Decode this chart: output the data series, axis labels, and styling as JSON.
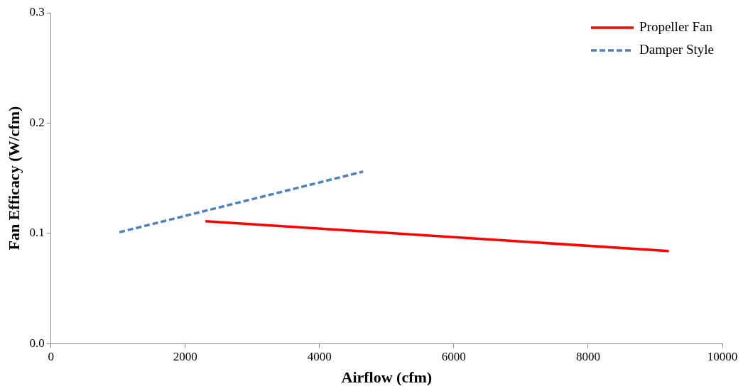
{
  "chart_data": {
    "type": "line",
    "xlabel": "Airflow (cfm)",
    "ylabel": "Fan Efficacy (W/cfm)",
    "xlim": [
      0,
      10000
    ],
    "xticks": [
      0,
      2000,
      4000,
      6000,
      8000,
      10000
    ],
    "ylim": [
      0,
      0.3
    ],
    "yticks": [
      {
        "value": 0,
        "label": "0.0"
      },
      0.1,
      0.2,
      0.3
    ],
    "grid": false,
    "legend": "top right",
    "marker": "none",
    "series": [
      {
        "name": "Propeller Fan",
        "color": "#ff0000",
        "line_style": "solid",
        "x": [
          2300,
          9200
        ],
        "values": [
          0.111,
          0.084
        ]
      },
      {
        "name": "Damper Style",
        "color": "#4f81bd",
        "line_style": "dashed",
        "x": [
          1020,
          4650
        ],
        "values": [
          0.101,
          0.156
        ]
      }
    ]
  }
}
